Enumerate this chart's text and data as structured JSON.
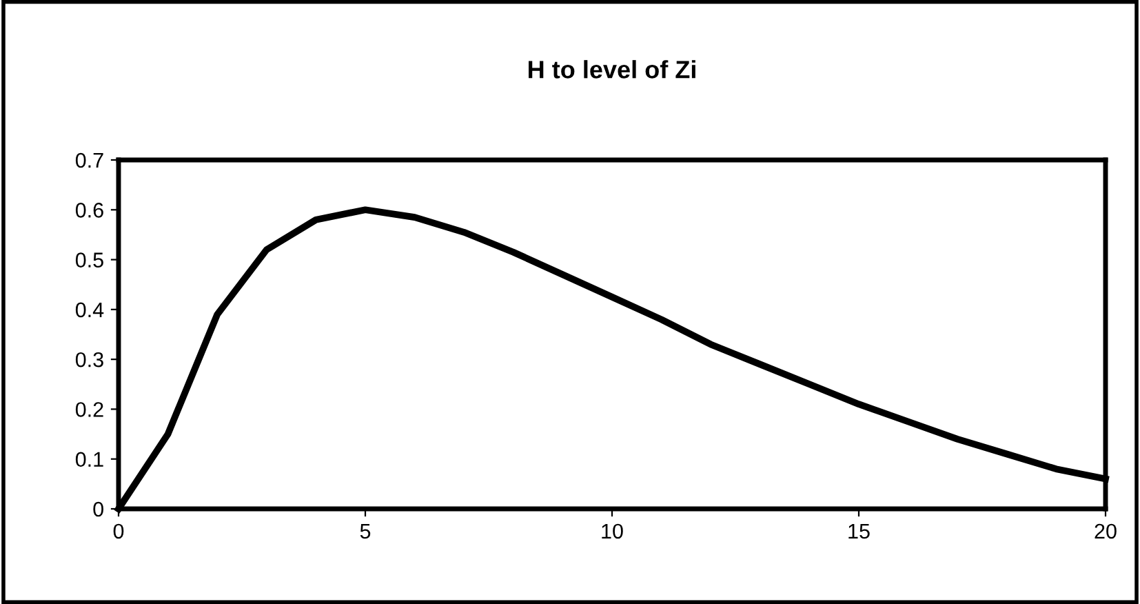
{
  "chart_data": {
    "type": "line",
    "title": "H to level of Zi",
    "x": [
      0,
      1,
      2,
      3,
      4,
      5,
      6,
      7,
      8,
      9,
      10,
      11,
      12,
      13,
      14,
      15,
      16,
      17,
      18,
      19,
      20
    ],
    "series": [
      {
        "color": "#000000",
        "values": [
          0,
          0.15,
          0.39,
          0.52,
          0.58,
          0.6,
          0.585,
          0.555,
          0.515,
          0.47,
          0.425,
          0.38,
          0.33,
          0.29,
          0.25,
          0.21,
          0.175,
          0.14,
          0.11,
          0.08,
          0.06
        ]
      }
    ],
    "xlim": [
      0,
      20
    ],
    "xticks": [
      0,
      5,
      10,
      15,
      20
    ],
    "ylim": [
      0,
      0.7
    ],
    "yticks": [
      0,
      0.1,
      0.2,
      0.3,
      0.4,
      0.5,
      0.6,
      0.7
    ],
    "grid": false,
    "legend": false,
    "marker": "none",
    "line_style": "solid"
  }
}
